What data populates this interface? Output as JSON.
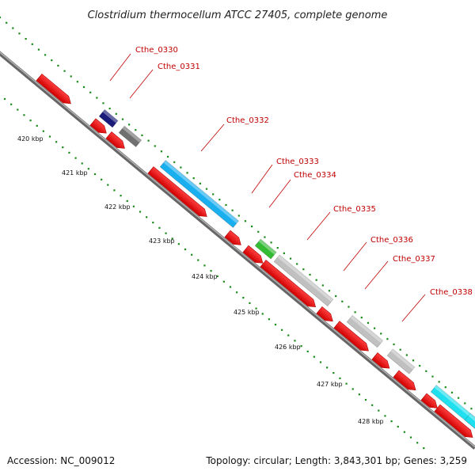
{
  "title": "Clostridium thermocellum ATCC 27405, complete genome",
  "footer": {
    "accession": "Accession: NC_009012",
    "summary": "Topology: circular; Length: 3,843,301 bp; Genes: 3,259"
  },
  "colors": {
    "backbone": "#8c8c8c",
    "tick": "#1a8a1a",
    "label": "#c00000"
  },
  "ticks": [
    {
      "label": "420 kbp"
    },
    {
      "label": "421 kbp"
    },
    {
      "label": "422 kbp"
    },
    {
      "label": "423 kbp"
    },
    {
      "label": "424 kbp"
    },
    {
      "label": "425 kbp"
    },
    {
      "label": "426 kbp"
    },
    {
      "label": "427 kbp"
    },
    {
      "label": "428 kbp"
    }
  ],
  "genes": [
    {
      "label": "Cthe_0330",
      "color": "#1a1a7a"
    },
    {
      "label": "Cthe_0331",
      "color": "#707070"
    },
    {
      "label": "Cthe_0332",
      "color": "#1ab0f0"
    },
    {
      "label": "Cthe_0333",
      "color": "#33bb33"
    },
    {
      "label": "Cthe_0334",
      "color": "#c0c0c0"
    },
    {
      "label": "Cthe_0335",
      "color": "#c0c0c0"
    },
    {
      "label": "Cthe_0336",
      "color": "#c0c0c0"
    },
    {
      "label": "Cthe_0337",
      "color": "#20e0f0"
    },
    {
      "label": "Cthe_0338",
      "color": "#20e0f0"
    }
  ]
}
